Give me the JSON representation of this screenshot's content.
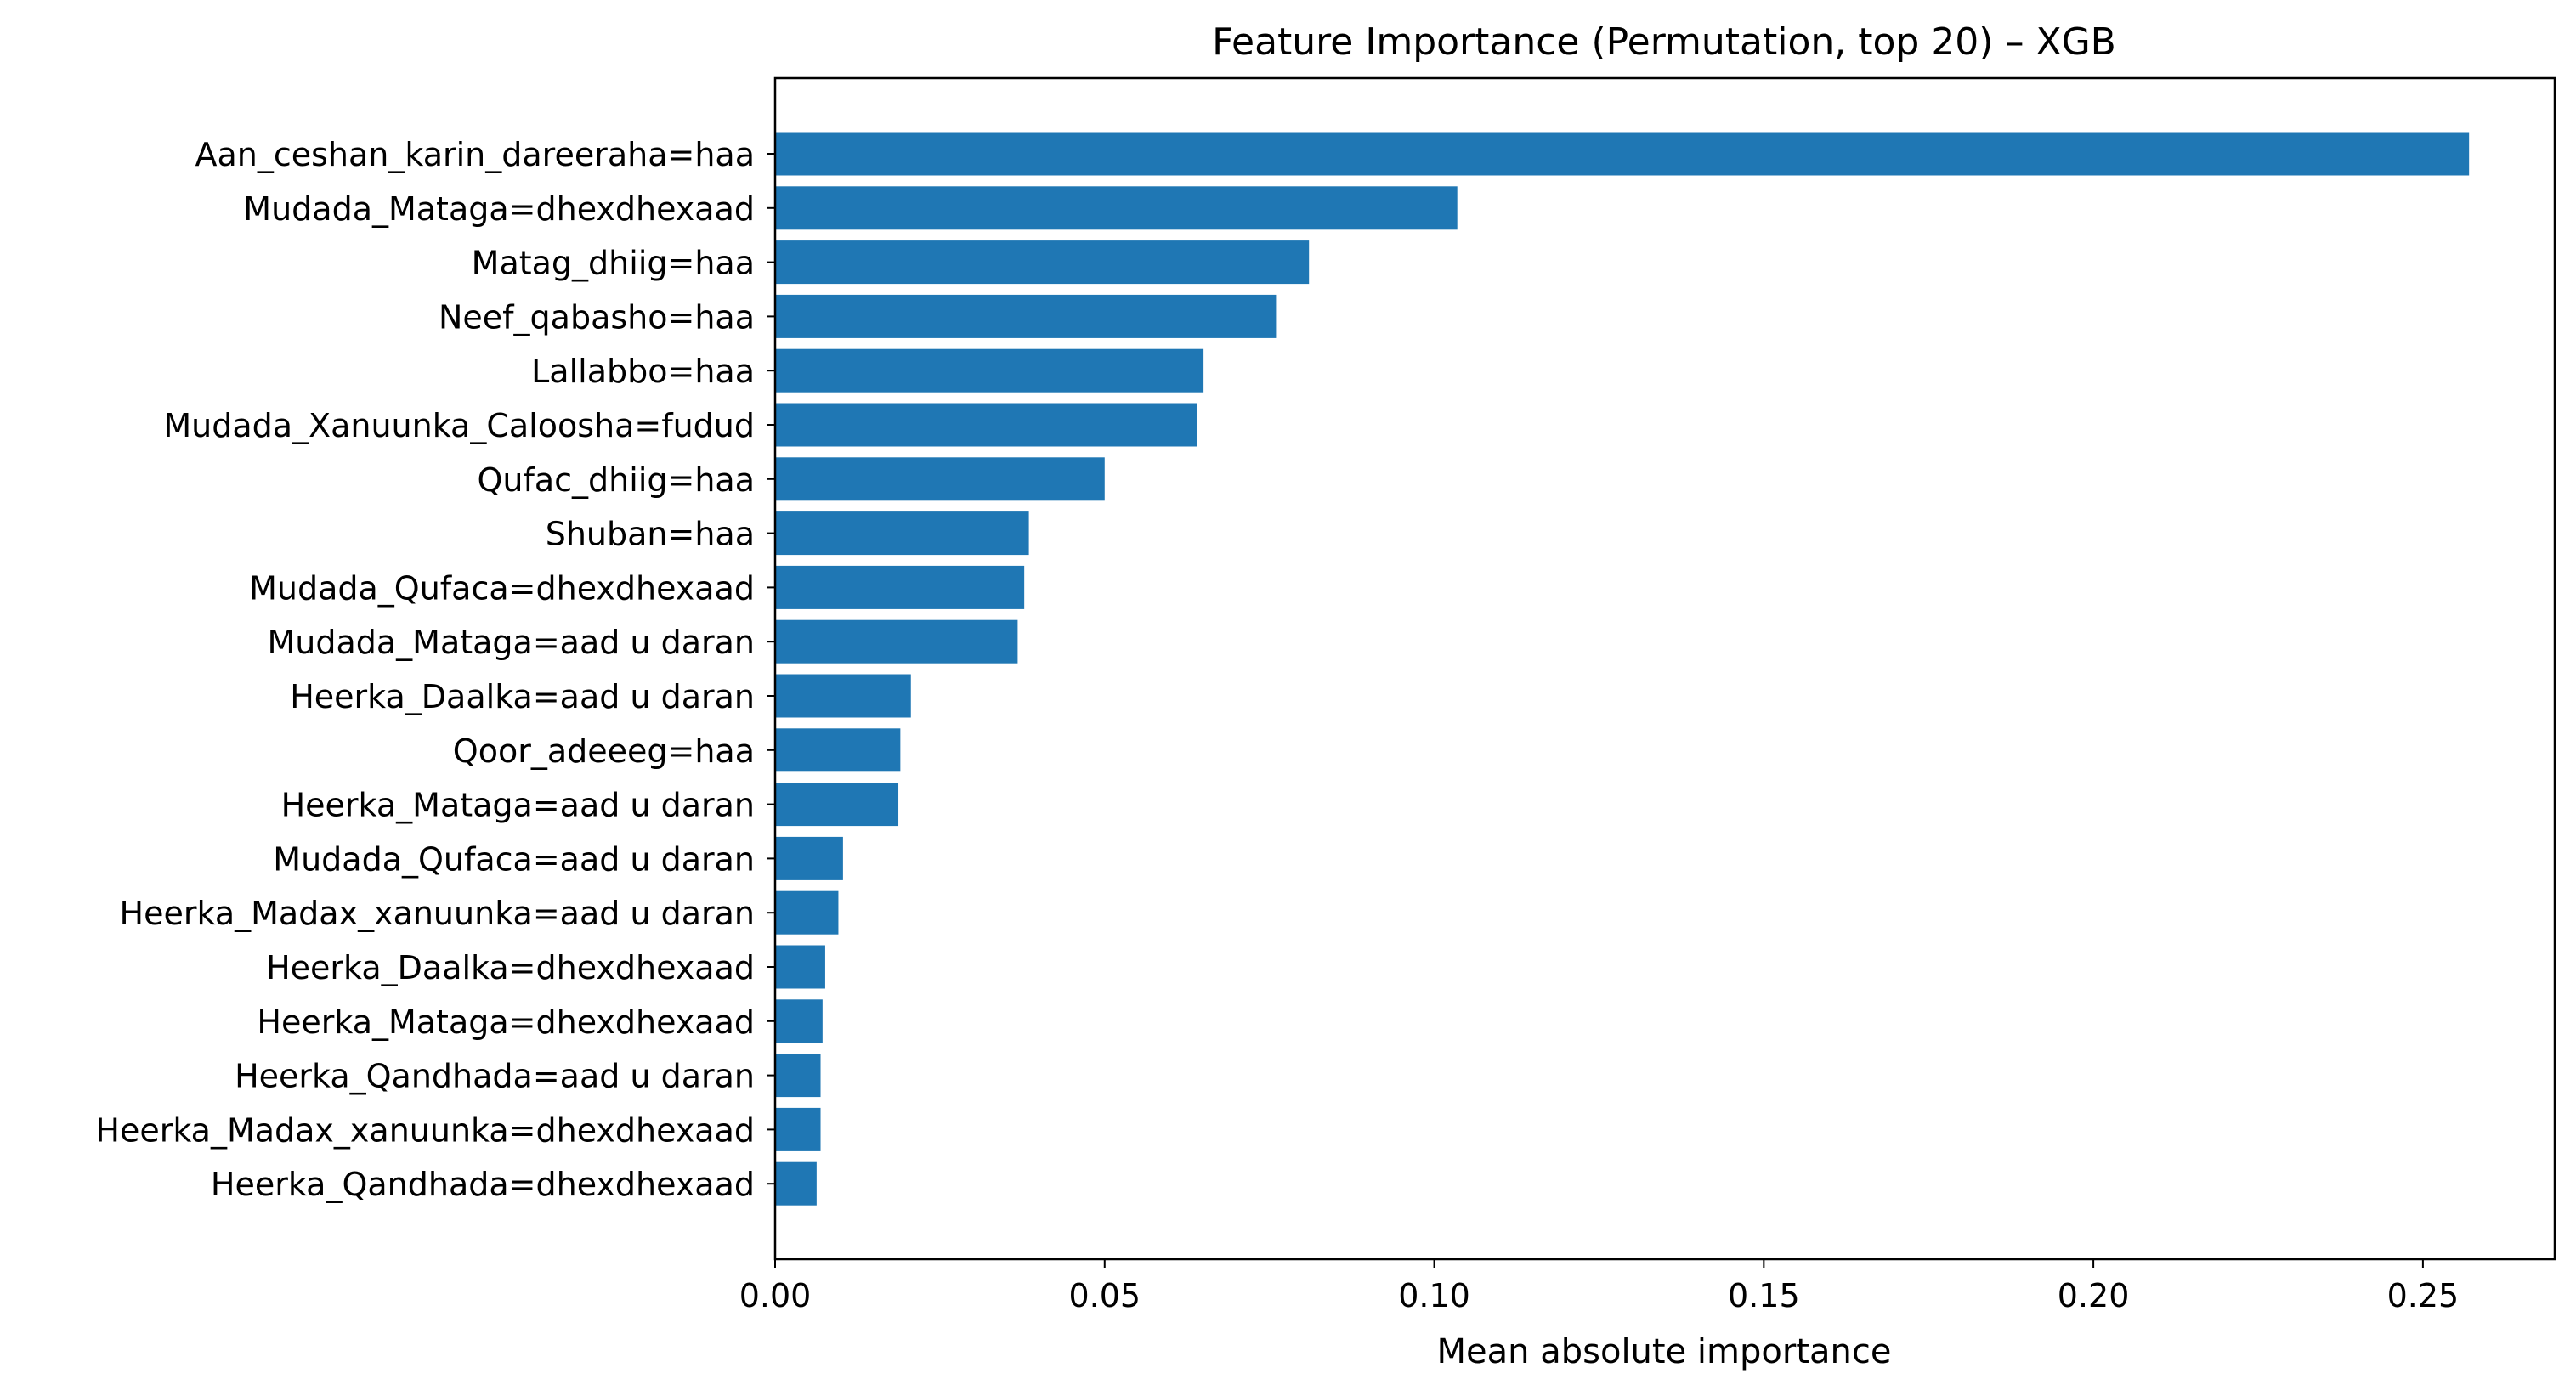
{
  "chart_data": {
    "type": "bar",
    "orientation": "horizontal",
    "title": "Feature Importance (Permutation, top 20) – XGB",
    "xlabel": "Mean absolute importance",
    "ylabel": "",
    "xlim": [
      0,
      0.27
    ],
    "xticks": [
      0.0,
      0.05,
      0.1,
      0.15,
      0.2,
      0.25
    ],
    "xtick_labels": [
      "0.00",
      "0.05",
      "0.10",
      "0.15",
      "0.20",
      "0.25"
    ],
    "grid": false,
    "bar_color": "#1f77b4",
    "categories": [
      "Aan_ceshan_karin_dareeraha=haa",
      "Mudada_Mataga=dhexdhexaad",
      "Matag_dhiig=haa",
      "Neef_qabasho=haa",
      "Lallabbo=haa",
      "Mudada_Xanuunka_Caloosha=fudud",
      "Qufac_dhiig=haa",
      "Shuban=haa",
      "Mudada_Qufaca=dhexdhexaad",
      "Mudada_Mataga=aad u daran",
      "Heerka_Daalka=aad u daran",
      "Qoor_adeeeg=haa",
      "Heerka_Mataga=aad u daran",
      "Mudada_Qufaca=aad u daran",
      "Heerka_Madax_xanuunka=aad u daran",
      "Heerka_Daalka=dhexdhexaad",
      "Heerka_Mataga=dhexdhexaad",
      "Heerka_Qandhada=aad u daran",
      "Heerka_Madax_xanuunka=dhexdhexaad",
      "Heerka_Qandhada=dhexdhexaad"
    ],
    "values": [
      0.257,
      0.1035,
      0.081,
      0.076,
      0.065,
      0.064,
      0.05,
      0.0385,
      0.0378,
      0.0368,
      0.0206,
      0.019,
      0.0187,
      0.0103,
      0.0096,
      0.0076,
      0.0072,
      0.0069,
      0.0069,
      0.0063
    ]
  }
}
